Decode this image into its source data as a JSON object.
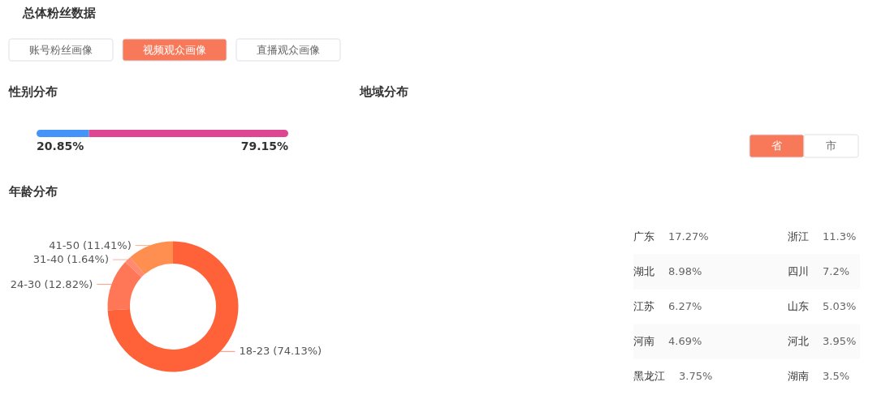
{
  "chart_data": [
    {
      "type": "other",
      "title": "总体粉丝数据",
      "categories": [
        "账号粉丝画像",
        "视频观众画像",
        "直播观众画像"
      ],
      "colors": [
        "#ffffff",
        "#f7795a",
        "#ffffff"
      ]
    },
    {
      "type": "bar",
      "title": "性别分布",
      "orientation": "horizontal",
      "stacked": true,
      "categories": [
        null
      ],
      "series": [
        {
          "color": "#4493f8",
          "values": [
            20.85
          ],
          "value_labels": [
            "20.85%"
          ]
        },
        {
          "color": "#df4691",
          "values": [
            79.15
          ],
          "value_labels": [
            "79.15%"
          ]
        }
      ]
    },
    {
      "type": "donut",
      "title": "年龄分布",
      "categories": [
        "18-23",
        "24-30",
        "31-40",
        "41-50"
      ],
      "values": [
        74.13,
        12.82,
        1.64,
        11.41
      ],
      "colors": [
        "#ff6138",
        "#ff7756",
        "#ff8a70",
        "#ff8f50"
      ],
      "value_labels": [
        "(74.13%)",
        "(12.82%)",
        "(1.64%)",
        "(11.41%)"
      ]
    },
    {
      "type": "other",
      "title": "地域分布",
      "categories": [
        "省",
        "市"
      ],
      "colors": [
        "#f7795a",
        "#ffffff"
      ]
    },
    {
      "type": "other",
      "categories": [
        "广东",
        "浙江",
        "湖北",
        "四川",
        "江苏",
        "山东",
        "河南",
        "河北",
        "黑龙江",
        "湖南"
      ],
      "values": [
        17.27,
        11.3,
        8.98,
        7.2,
        6.27,
        5.03,
        4.69,
        3.95,
        3.75,
        3.5
      ],
      "value_labels": [
        "17.27%",
        "11.3%",
        "8.98%",
        "7.2%",
        "6.27%",
        "5.03%",
        "4.69%",
        "3.95%",
        "3.75%",
        "3.5%"
      ]
    }
  ]
}
